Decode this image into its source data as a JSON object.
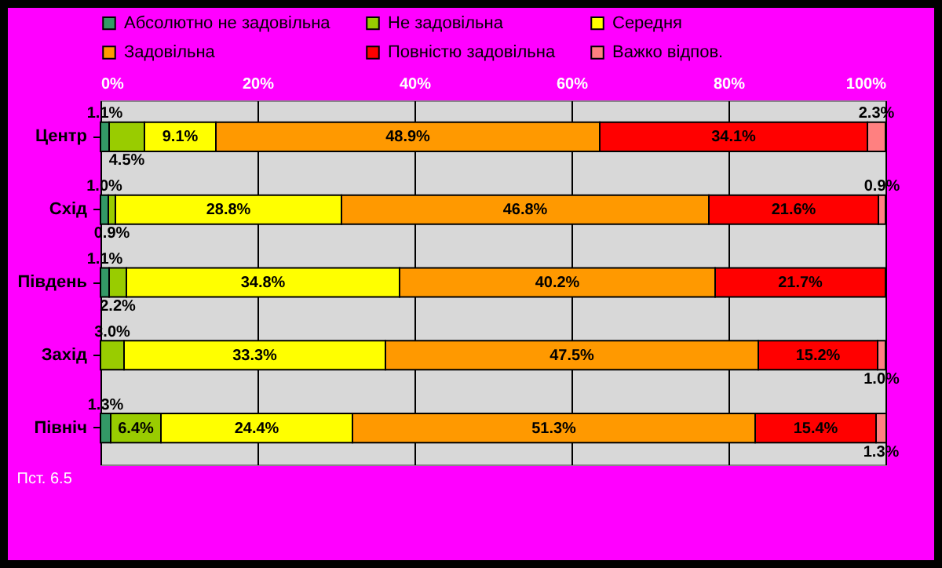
{
  "chart_data": {
    "type": "bar",
    "orientation": "horizontal",
    "stacked": true,
    "categories": [
      "Центр",
      "Схід",
      "Південь",
      "Захід",
      "Північ"
    ],
    "series": [
      {
        "name": "Абсолютно не задовільна",
        "color": "#339966",
        "values": [
          1.1,
          1.0,
          1.1,
          null,
          1.3
        ],
        "value_labels": [
          "1.1%",
          "1.0%",
          "1.1%",
          null,
          "1.3%"
        ]
      },
      {
        "name": "Не задовільна",
        "color": "#99cc00",
        "values": [
          4.5,
          0.9,
          2.2,
          3.0,
          6.4
        ],
        "value_labels": [
          "4.5%",
          "0.9%",
          "2.2%",
          "3.0%",
          "6.4%"
        ]
      },
      {
        "name": "Середня",
        "color": "#ffff00",
        "values": [
          9.1,
          28.8,
          34.8,
          33.3,
          24.4
        ],
        "value_labels": [
          "9.1%",
          "28.8%",
          "34.8%",
          "33.3%",
          "24.4%"
        ]
      },
      {
        "name": "Задовільна",
        "color": "#ff9900",
        "values": [
          48.9,
          46.8,
          40.2,
          47.5,
          51.3
        ],
        "value_labels": [
          "48.9%",
          "46.8%",
          "40.2%",
          "47.5%",
          "51.3%"
        ]
      },
      {
        "name": "Повністю задовільна",
        "color": "#ff0000",
        "values": [
          34.1,
          21.6,
          21.7,
          15.2,
          15.4
        ],
        "value_labels": [
          "34.1%",
          "21.6%",
          "21.7%",
          "15.2%",
          "15.4%"
        ]
      },
      {
        "name": "Важко відпов.",
        "color": "#ff8080",
        "values": [
          2.3,
          0.9,
          null,
          1.0,
          1.3
        ],
        "value_labels": [
          "2.3%",
          "0.9%",
          null,
          "1.0%",
          "1.3%"
        ]
      }
    ],
    "xlim": [
      0,
      100
    ],
    "xticks": [
      {
        "value": 0,
        "label": "0%"
      },
      {
        "value": 20,
        "label": "20%"
      },
      {
        "value": 40,
        "label": "40%"
      },
      {
        "value": 60,
        "label": "60%"
      },
      {
        "value": 80,
        "label": "80%"
      },
      {
        "value": 100,
        "label": "100%"
      }
    ],
    "grid": "x",
    "legend": "top",
    "annotations": [
      "Пст. 6.5"
    ]
  }
}
